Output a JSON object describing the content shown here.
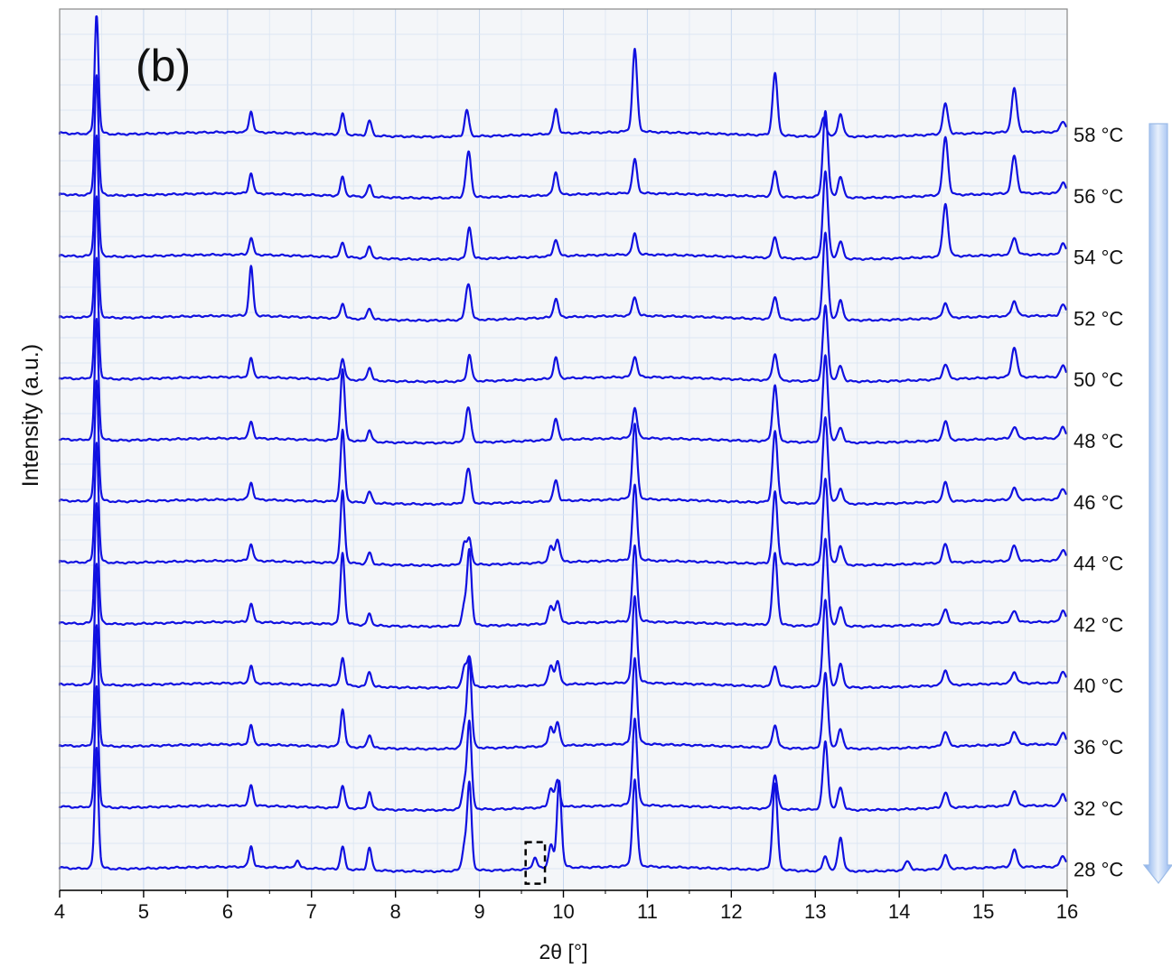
{
  "chart_data": {
    "type": "line",
    "panel_label": "(b)",
    "xlabel": "2θ [°]",
    "ylabel": "Intensity (a.u.)",
    "xlim": [
      4,
      16
    ],
    "x_ticks": [
      "4",
      "5",
      "6",
      "7",
      "8",
      "9",
      "10",
      "11",
      "12",
      "13",
      "14",
      "15",
      "16"
    ],
    "grid": true,
    "arrow": "down",
    "series_color": "#1010e0",
    "series": [
      {
        "name": "58 °C",
        "peaks": [
          [
            4.44,
            3.2
          ],
          [
            6.28,
            0.55
          ],
          [
            7.37,
            0.55
          ],
          [
            7.69,
            0.4
          ],
          [
            8.85,
            0.7
          ],
          [
            9.91,
            0.65
          ],
          [
            10.85,
            2.2
          ],
          [
            12.52,
            1.65
          ],
          [
            13.1,
            0.5
          ],
          [
            13.3,
            0.6
          ],
          [
            14.55,
            0.8
          ],
          [
            15.37,
            1.15
          ],
          [
            15.95,
            0.3
          ]
        ]
      },
      {
        "name": "56 °C",
        "peaks": [
          [
            4.44,
            3.2
          ],
          [
            6.28,
            0.55
          ],
          [
            7.37,
            0.5
          ],
          [
            7.69,
            0.3
          ],
          [
            8.85,
            0.5
          ],
          [
            8.88,
            0.9
          ],
          [
            9.91,
            0.6
          ],
          [
            10.85,
            0.9
          ],
          [
            12.52,
            0.65
          ],
          [
            13.12,
            2.3
          ],
          [
            13.3,
            0.55
          ],
          [
            14.55,
            1.55
          ],
          [
            15.37,
            1.0
          ],
          [
            15.95,
            0.3
          ]
        ]
      },
      {
        "name": "54 °C",
        "peaks": [
          [
            4.44,
            3.2
          ],
          [
            6.28,
            0.45
          ],
          [
            7.37,
            0.4
          ],
          [
            7.69,
            0.3
          ],
          [
            8.88,
            0.85
          ],
          [
            9.91,
            0.45
          ],
          [
            10.85,
            0.55
          ],
          [
            12.52,
            0.55
          ],
          [
            13.12,
            2.3
          ],
          [
            13.3,
            0.45
          ],
          [
            14.55,
            1.4
          ],
          [
            15.37,
            0.45
          ],
          [
            15.95,
            0.3
          ]
        ]
      },
      {
        "name": "52 °C",
        "peaks": [
          [
            4.44,
            3.2
          ],
          [
            6.28,
            1.3
          ],
          [
            7.37,
            0.4
          ],
          [
            7.69,
            0.3
          ],
          [
            8.85,
            0.5
          ],
          [
            8.88,
            0.65
          ],
          [
            9.91,
            0.5
          ],
          [
            10.85,
            0.5
          ],
          [
            12.52,
            0.6
          ],
          [
            13.12,
            2.3
          ],
          [
            13.3,
            0.5
          ],
          [
            14.55,
            0.4
          ],
          [
            15.37,
            0.4
          ],
          [
            15.95,
            0.3
          ]
        ]
      },
      {
        "name": "50 °C",
        "peaks": [
          [
            4.44,
            3.2
          ],
          [
            6.28,
            0.5
          ],
          [
            7.37,
            0.55
          ],
          [
            7.69,
            0.35
          ],
          [
            8.88,
            0.7
          ],
          [
            9.91,
            0.55
          ],
          [
            10.85,
            0.55
          ],
          [
            12.52,
            0.7
          ],
          [
            13.12,
            2.0
          ],
          [
            13.3,
            0.4
          ],
          [
            14.55,
            0.4
          ],
          [
            15.37,
            0.8
          ],
          [
            15.95,
            0.3
          ]
        ]
      },
      {
        "name": "48 °C",
        "peaks": [
          [
            4.44,
            3.2
          ],
          [
            6.28,
            0.45
          ],
          [
            7.37,
            1.9
          ],
          [
            7.69,
            0.3
          ],
          [
            8.85,
            0.5
          ],
          [
            8.88,
            0.6
          ],
          [
            9.91,
            0.55
          ],
          [
            10.85,
            0.8
          ],
          [
            12.52,
            1.5
          ],
          [
            13.12,
            2.3
          ],
          [
            13.3,
            0.4
          ],
          [
            14.55,
            0.5
          ],
          [
            15.37,
            0.3
          ],
          [
            15.95,
            0.3
          ]
        ]
      },
      {
        "name": "46 °C",
        "peaks": [
          [
            4.44,
            3.2
          ],
          [
            6.28,
            0.45
          ],
          [
            7.37,
            1.9
          ],
          [
            7.69,
            0.3
          ],
          [
            8.85,
            0.5
          ],
          [
            8.88,
            0.6
          ],
          [
            9.91,
            0.55
          ],
          [
            10.85,
            2.0
          ],
          [
            12.52,
            1.9
          ],
          [
            13.12,
            2.3
          ],
          [
            13.3,
            0.4
          ],
          [
            14.55,
            0.5
          ],
          [
            15.37,
            0.3
          ],
          [
            15.95,
            0.3
          ]
        ]
      },
      {
        "name": "44 °C",
        "peaks": [
          [
            4.44,
            3.2
          ],
          [
            6.28,
            0.45
          ],
          [
            7.37,
            1.9
          ],
          [
            7.69,
            0.3
          ],
          [
            8.82,
            0.55
          ],
          [
            8.88,
            0.65
          ],
          [
            9.85,
            0.4
          ],
          [
            9.93,
            0.6
          ],
          [
            10.85,
            2.0
          ],
          [
            12.52,
            1.9
          ],
          [
            13.12,
            2.3
          ],
          [
            13.3,
            0.5
          ],
          [
            14.55,
            0.5
          ],
          [
            15.37,
            0.4
          ],
          [
            15.95,
            0.3
          ]
        ]
      },
      {
        "name": "42 °C",
        "peaks": [
          [
            4.44,
            3.2
          ],
          [
            6.28,
            0.5
          ],
          [
            7.37,
            1.9
          ],
          [
            7.69,
            0.3
          ],
          [
            8.82,
            0.5
          ],
          [
            8.88,
            2.0
          ],
          [
            9.85,
            0.45
          ],
          [
            9.93,
            0.6
          ],
          [
            10.85,
            2.0
          ],
          [
            12.52,
            1.9
          ],
          [
            13.12,
            2.3
          ],
          [
            13.3,
            0.5
          ],
          [
            14.55,
            0.4
          ],
          [
            15.37,
            0.3
          ],
          [
            15.95,
            0.3
          ]
        ]
      },
      {
        "name": "40 °C",
        "peaks": [
          [
            4.44,
            3.2
          ],
          [
            6.28,
            0.45
          ],
          [
            7.37,
            0.75
          ],
          [
            7.69,
            0.4
          ],
          [
            8.82,
            0.5
          ],
          [
            8.88,
            0.8
          ],
          [
            9.85,
            0.5
          ],
          [
            9.93,
            0.6
          ],
          [
            10.85,
            2.3
          ],
          [
            12.52,
            0.55
          ],
          [
            13.12,
            2.3
          ],
          [
            13.3,
            0.6
          ],
          [
            14.55,
            0.4
          ],
          [
            15.37,
            0.3
          ],
          [
            15.95,
            0.3
          ]
        ]
      },
      {
        "name": "36 °C",
        "peaks": [
          [
            4.44,
            3.2
          ],
          [
            6.28,
            0.5
          ],
          [
            7.37,
            1.0
          ],
          [
            7.69,
            0.35
          ],
          [
            8.82,
            0.5
          ],
          [
            8.88,
            2.3
          ],
          [
            9.85,
            0.5
          ],
          [
            9.93,
            0.6
          ],
          [
            10.85,
            2.3
          ],
          [
            12.52,
            0.6
          ],
          [
            13.12,
            2.0
          ],
          [
            13.3,
            0.5
          ],
          [
            14.55,
            0.4
          ],
          [
            15.37,
            0.35
          ],
          [
            15.95,
            0.3
          ]
        ]
      },
      {
        "name": "32 °C",
        "peaks": [
          [
            4.44,
            3.2
          ],
          [
            6.28,
            0.55
          ],
          [
            7.37,
            0.6
          ],
          [
            7.69,
            0.45
          ],
          [
            8.82,
            0.6
          ],
          [
            8.88,
            2.3
          ],
          [
            9.85,
            0.5
          ],
          [
            9.93,
            0.7
          ],
          [
            10.85,
            2.3
          ],
          [
            12.52,
            0.9
          ],
          [
            13.12,
            1.8
          ],
          [
            13.3,
            0.6
          ],
          [
            14.55,
            0.4
          ],
          [
            15.37,
            0.4
          ],
          [
            15.95,
            0.3
          ]
        ]
      },
      {
        "name": "28 °C",
        "peaks": [
          [
            4.44,
            3.2
          ],
          [
            6.28,
            0.55
          ],
          [
            6.83,
            0.2
          ],
          [
            7.37,
            0.6
          ],
          [
            7.69,
            0.6
          ],
          [
            8.82,
            0.6
          ],
          [
            8.88,
            2.3
          ],
          [
            9.66,
            0.3
          ],
          [
            9.85,
            0.6
          ],
          [
            9.95,
            2.3
          ],
          [
            10.85,
            2.3
          ],
          [
            12.52,
            2.3
          ],
          [
            13.12,
            0.4
          ],
          [
            13.3,
            0.9
          ],
          [
            14.1,
            0.25
          ],
          [
            14.55,
            0.35
          ],
          [
            15.37,
            0.45
          ],
          [
            15.95,
            0.3
          ]
        ]
      }
    ],
    "annotation": {
      "type": "dashed-box",
      "x_range": [
        9.55,
        9.78
      ],
      "series": "28 °C"
    }
  }
}
